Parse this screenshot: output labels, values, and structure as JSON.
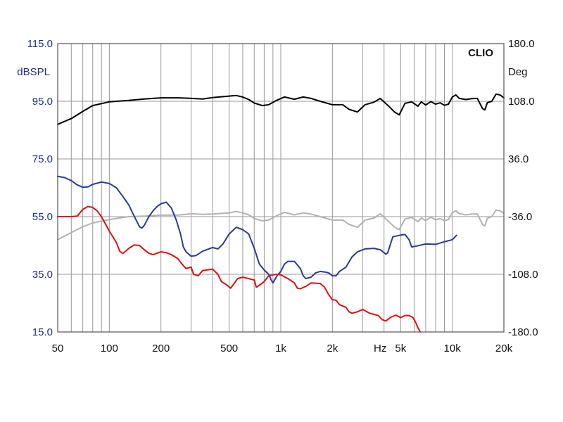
{
  "chart_data": {
    "type": "line",
    "xscale": "log",
    "xlim": [
      50,
      20000
    ],
    "ylim": [
      15,
      115
    ],
    "y2lim": [
      -180,
      180
    ],
    "grid": true,
    "brand_label": "CLIO",
    "ylabel": "dBSPL",
    "y2label": "Deg",
    "x_unit_label": "Hz",
    "x_ticks": [
      {
        "v": 50,
        "label": "50"
      },
      {
        "v": 100,
        "label": "100"
      },
      {
        "v": 200,
        "label": "200"
      },
      {
        "v": 500,
        "label": "500"
      },
      {
        "v": 1000,
        "label": "1k"
      },
      {
        "v": 2000,
        "label": "2k"
      },
      {
        "v": 5000,
        "label": "5k"
      },
      {
        "v": 10000,
        "label": "10k"
      },
      {
        "v": 20000,
        "label": "20k"
      }
    ],
    "y_ticks": [
      {
        "v": 115,
        "label": "115.0"
      },
      {
        "v": 95,
        "label": "95.0"
      },
      {
        "v": 75,
        "label": "75.0"
      },
      {
        "v": 55,
        "label": "55.0"
      },
      {
        "v": 35,
        "label": "35.0"
      },
      {
        "v": 15,
        "label": "15.0"
      }
    ],
    "y2_ticks": [
      {
        "v": 180,
        "label": "180.0"
      },
      {
        "v": 108,
        "label": "108.0"
      },
      {
        "v": 36,
        "label": "36.0"
      },
      {
        "v": -36,
        "label": "-36.0"
      },
      {
        "v": -108,
        "label": "-108.0"
      },
      {
        "v": -180,
        "label": "-180.0"
      }
    ],
    "series": [
      {
        "color": "#000000",
        "points": [
          [
            50,
            87
          ],
          [
            60,
            89
          ],
          [
            70,
            91.5
          ],
          [
            80,
            93.5
          ],
          [
            100,
            94.8
          ],
          [
            130,
            95.3
          ],
          [
            160,
            95.8
          ],
          [
            200,
            96.2
          ],
          [
            250,
            96.2
          ],
          [
            300,
            96
          ],
          [
            350,
            95.8
          ],
          [
            400,
            96.3
          ],
          [
            500,
            96.8
          ],
          [
            550,
            97
          ],
          [
            600,
            96.5
          ],
          [
            650,
            95.6
          ],
          [
            700,
            94.4
          ],
          [
            780,
            93.5
          ],
          [
            850,
            93.8
          ],
          [
            950,
            95.4
          ],
          [
            1050,
            96.5
          ],
          [
            1200,
            95.7
          ],
          [
            1350,
            96.5
          ],
          [
            1500,
            96
          ],
          [
            1700,
            95
          ],
          [
            2000,
            93.8
          ],
          [
            2300,
            93.8
          ],
          [
            2500,
            92.2
          ],
          [
            2800,
            91.3
          ],
          [
            3100,
            93.8
          ],
          [
            3500,
            94.7
          ],
          [
            3800,
            96
          ],
          [
            4100,
            94.2
          ],
          [
            4300,
            93.1
          ],
          [
            4600,
            91.3
          ],
          [
            4900,
            90.3
          ],
          [
            5300,
            94.3
          ],
          [
            5800,
            94.8
          ],
          [
            6300,
            93.3
          ],
          [
            6600,
            94.8
          ],
          [
            7000,
            93.7
          ],
          [
            7500,
            94.9
          ],
          [
            8000,
            94
          ],
          [
            8500,
            94.5
          ],
          [
            9000,
            93.6
          ],
          [
            9500,
            94
          ],
          [
            10000,
            96.5
          ],
          [
            10500,
            97.2
          ],
          [
            11000,
            96
          ],
          [
            12000,
            95.6
          ],
          [
            13000,
            95.9
          ],
          [
            14000,
            96
          ],
          [
            15000,
            92.5
          ],
          [
            15500,
            92
          ],
          [
            16000,
            94.5
          ],
          [
            17000,
            95
          ],
          [
            18000,
            97.5
          ],
          [
            19000,
            97.2
          ],
          [
            20000,
            96.2
          ]
        ]
      },
      {
        "color": "#b2b2b2",
        "points": [
          [
            50,
            47
          ],
          [
            60,
            49.5
          ],
          [
            70,
            51.5
          ],
          [
            80,
            52.8
          ],
          [
            100,
            54
          ],
          [
            130,
            55
          ],
          [
            160,
            55.2
          ],
          [
            200,
            55.5
          ],
          [
            250,
            55.5
          ],
          [
            300,
            56
          ],
          [
            350,
            55.8
          ],
          [
            400,
            55.9
          ],
          [
            500,
            56.3
          ],
          [
            550,
            56.8
          ],
          [
            600,
            56.3
          ],
          [
            650,
            55.6
          ],
          [
            700,
            54.4
          ],
          [
            780,
            53.5
          ],
          [
            850,
            53.8
          ],
          [
            950,
            55.4
          ],
          [
            1050,
            56.5
          ],
          [
            1200,
            55.6
          ],
          [
            1350,
            56.3
          ],
          [
            1500,
            55.9
          ],
          [
            1700,
            55
          ],
          [
            2000,
            53.8
          ],
          [
            2300,
            53.8
          ],
          [
            2500,
            52.3
          ],
          [
            2800,
            51.3
          ],
          [
            3100,
            53.8
          ],
          [
            3500,
            54.5
          ],
          [
            3800,
            56
          ],
          [
            4100,
            54.2
          ],
          [
            4300,
            53.1
          ],
          [
            4600,
            51.4
          ],
          [
            4900,
            50.5
          ],
          [
            5300,
            54.2
          ],
          [
            5800,
            54.7
          ],
          [
            6300,
            53.3
          ],
          [
            6600,
            54.5
          ],
          [
            7000,
            53.6
          ],
          [
            7500,
            54.8
          ],
          [
            8000,
            53.9
          ],
          [
            8500,
            54.3
          ],
          [
            9000,
            53.6
          ],
          [
            9500,
            54
          ],
          [
            10000,
            56.4
          ],
          [
            10500,
            57
          ],
          [
            11000,
            56
          ],
          [
            12000,
            55.6
          ],
          [
            13000,
            55.9
          ],
          [
            14000,
            55.9
          ],
          [
            15000,
            52.3
          ],
          [
            15500,
            51.8
          ],
          [
            16000,
            54.4
          ],
          [
            17000,
            55
          ],
          [
            18000,
            57.3
          ],
          [
            19000,
            57
          ],
          [
            20000,
            56.2
          ]
        ]
      },
      {
        "color": "#2a3b94",
        "points": [
          [
            50,
            69
          ],
          [
            55,
            68.5
          ],
          [
            60,
            67.5
          ],
          [
            65,
            66
          ],
          [
            70,
            65.2
          ],
          [
            75,
            65.3
          ],
          [
            80,
            66.2
          ],
          [
            90,
            67
          ],
          [
            100,
            66.5
          ],
          [
            110,
            65
          ],
          [
            120,
            62
          ],
          [
            130,
            59
          ],
          [
            140,
            55
          ],
          [
            150,
            51.5
          ],
          [
            155,
            51
          ],
          [
            160,
            52
          ],
          [
            170,
            55
          ],
          [
            180,
            57
          ],
          [
            190,
            58.5
          ],
          [
            200,
            59.5
          ],
          [
            215,
            60
          ],
          [
            230,
            58
          ],
          [
            245,
            54
          ],
          [
            260,
            49
          ],
          [
            270,
            44.5
          ],
          [
            280,
            42.8
          ],
          [
            300,
            41.3
          ],
          [
            320,
            41.5
          ],
          [
            350,
            43
          ],
          [
            400,
            44.3
          ],
          [
            430,
            43.8
          ],
          [
            460,
            45.5
          ],
          [
            500,
            49
          ],
          [
            550,
            51.3
          ],
          [
            600,
            50.5
          ],
          [
            650,
            49
          ],
          [
            700,
            44
          ],
          [
            750,
            38.5
          ],
          [
            800,
            36.5
          ],
          [
            850,
            35
          ],
          [
            880,
            33
          ],
          [
            900,
            32
          ],
          [
            950,
            34.5
          ],
          [
            1000,
            36
          ],
          [
            1050,
            38.5
          ],
          [
            1100,
            39.5
          ],
          [
            1200,
            39.5
          ],
          [
            1300,
            37
          ],
          [
            1350,
            34.5
          ],
          [
            1400,
            33.5
          ],
          [
            1500,
            34
          ],
          [
            1600,
            35.5
          ],
          [
            1700,
            36
          ],
          [
            1800,
            35.8
          ],
          [
            1900,
            35.5
          ],
          [
            2000,
            34.5
          ],
          [
            2100,
            34.5
          ],
          [
            2200,
            36
          ],
          [
            2400,
            37.5
          ],
          [
            2600,
            41
          ],
          [
            2800,
            42.8
          ],
          [
            3100,
            43.8
          ],
          [
            3500,
            44
          ],
          [
            3800,
            43.5
          ],
          [
            4100,
            42
          ],
          [
            4200,
            42.5
          ],
          [
            4500,
            48
          ],
          [
            5000,
            48.6
          ],
          [
            5300,
            48.8
          ],
          [
            5600,
            47
          ],
          [
            5800,
            44.5
          ],
          [
            6200,
            44.8
          ],
          [
            7000,
            45.5
          ],
          [
            8000,
            45.4
          ],
          [
            9000,
            46.3
          ],
          [
            10000,
            47
          ],
          [
            10600,
            48.5
          ]
        ]
      },
      {
        "color": "#e01010",
        "points": [
          [
            50,
            55
          ],
          [
            55,
            55
          ],
          [
            60,
            55
          ],
          [
            65,
            55.2
          ],
          [
            70,
            57.5
          ],
          [
            75,
            58.5
          ],
          [
            80,
            58.2
          ],
          [
            85,
            57
          ],
          [
            90,
            55
          ],
          [
            100,
            50
          ],
          [
            110,
            46
          ],
          [
            115,
            43
          ],
          [
            120,
            42.2
          ],
          [
            130,
            44
          ],
          [
            140,
            45.2
          ],
          [
            150,
            45
          ],
          [
            160,
            43.5
          ],
          [
            170,
            42.3
          ],
          [
            180,
            41.8
          ],
          [
            200,
            42.8
          ],
          [
            215,
            42.5
          ],
          [
            230,
            41.8
          ],
          [
            250,
            40.5
          ],
          [
            270,
            38
          ],
          [
            280,
            37
          ],
          [
            300,
            37.5
          ],
          [
            310,
            35
          ],
          [
            330,
            34.5
          ],
          [
            350,
            36.3
          ],
          [
            400,
            36.8
          ],
          [
            430,
            35
          ],
          [
            450,
            32.5
          ],
          [
            480,
            31.5
          ],
          [
            510,
            30.2
          ],
          [
            530,
            31.5
          ],
          [
            560,
            33.5
          ],
          [
            600,
            34
          ],
          [
            650,
            33.5
          ],
          [
            700,
            33
          ],
          [
            720,
            30.5
          ],
          [
            750,
            31.2
          ],
          [
            800,
            32.5
          ],
          [
            850,
            34.5
          ],
          [
            900,
            34.8
          ],
          [
            950,
            35
          ],
          [
            1000,
            34.8
          ],
          [
            1100,
            33.5
          ],
          [
            1200,
            32
          ],
          [
            1250,
            30.2
          ],
          [
            1300,
            30
          ],
          [
            1400,
            30.8
          ],
          [
            1500,
            32
          ],
          [
            1700,
            31.8
          ],
          [
            1800,
            30.5
          ],
          [
            1900,
            28
          ],
          [
            2000,
            26.2
          ],
          [
            2100,
            26
          ],
          [
            2200,
            24.5
          ],
          [
            2400,
            23.5
          ],
          [
            2500,
            22
          ],
          [
            2600,
            21.5
          ],
          [
            2800,
            22
          ],
          [
            3000,
            22.8
          ],
          [
            3300,
            21.5
          ],
          [
            3700,
            20.7
          ],
          [
            3900,
            19.3
          ],
          [
            4100,
            18.8
          ],
          [
            4400,
            20.2
          ],
          [
            4700,
            20.8
          ],
          [
            5000,
            20
          ],
          [
            5300,
            20.7
          ],
          [
            5600,
            20.7
          ],
          [
            5900,
            20
          ],
          [
            6100,
            18.5
          ],
          [
            6300,
            16.5
          ],
          [
            6500,
            15
          ]
        ]
      }
    ]
  }
}
